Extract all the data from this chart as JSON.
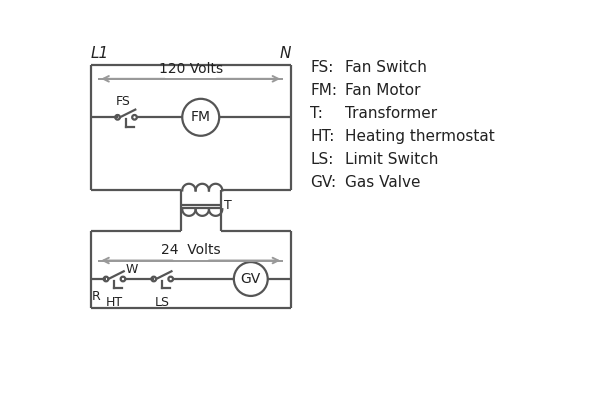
{
  "bg_color": "#ffffff",
  "line_color": "#555555",
  "arrow_color": "#999999",
  "text_color": "#222222",
  "legend": [
    [
      "FS:",
      "Fan Switch"
    ],
    [
      "FM:",
      "Fan Motor"
    ],
    [
      "T:",
      "Transformer"
    ],
    [
      "HT:",
      "Heating thermostat"
    ],
    [
      "LS:",
      "Limit Switch"
    ],
    [
      "GV:",
      "Gas Valve"
    ]
  ],
  "L1_label": "L1",
  "N_label": "N",
  "v120_label": "120 Volts",
  "v24_label": "24  Volts",
  "fs_label": "FS",
  "fm_label": "FM",
  "t_label": "T",
  "ht_label": "HT",
  "ls_label": "LS",
  "gv_label": "GV",
  "r_label": "R",
  "w_label": "W"
}
